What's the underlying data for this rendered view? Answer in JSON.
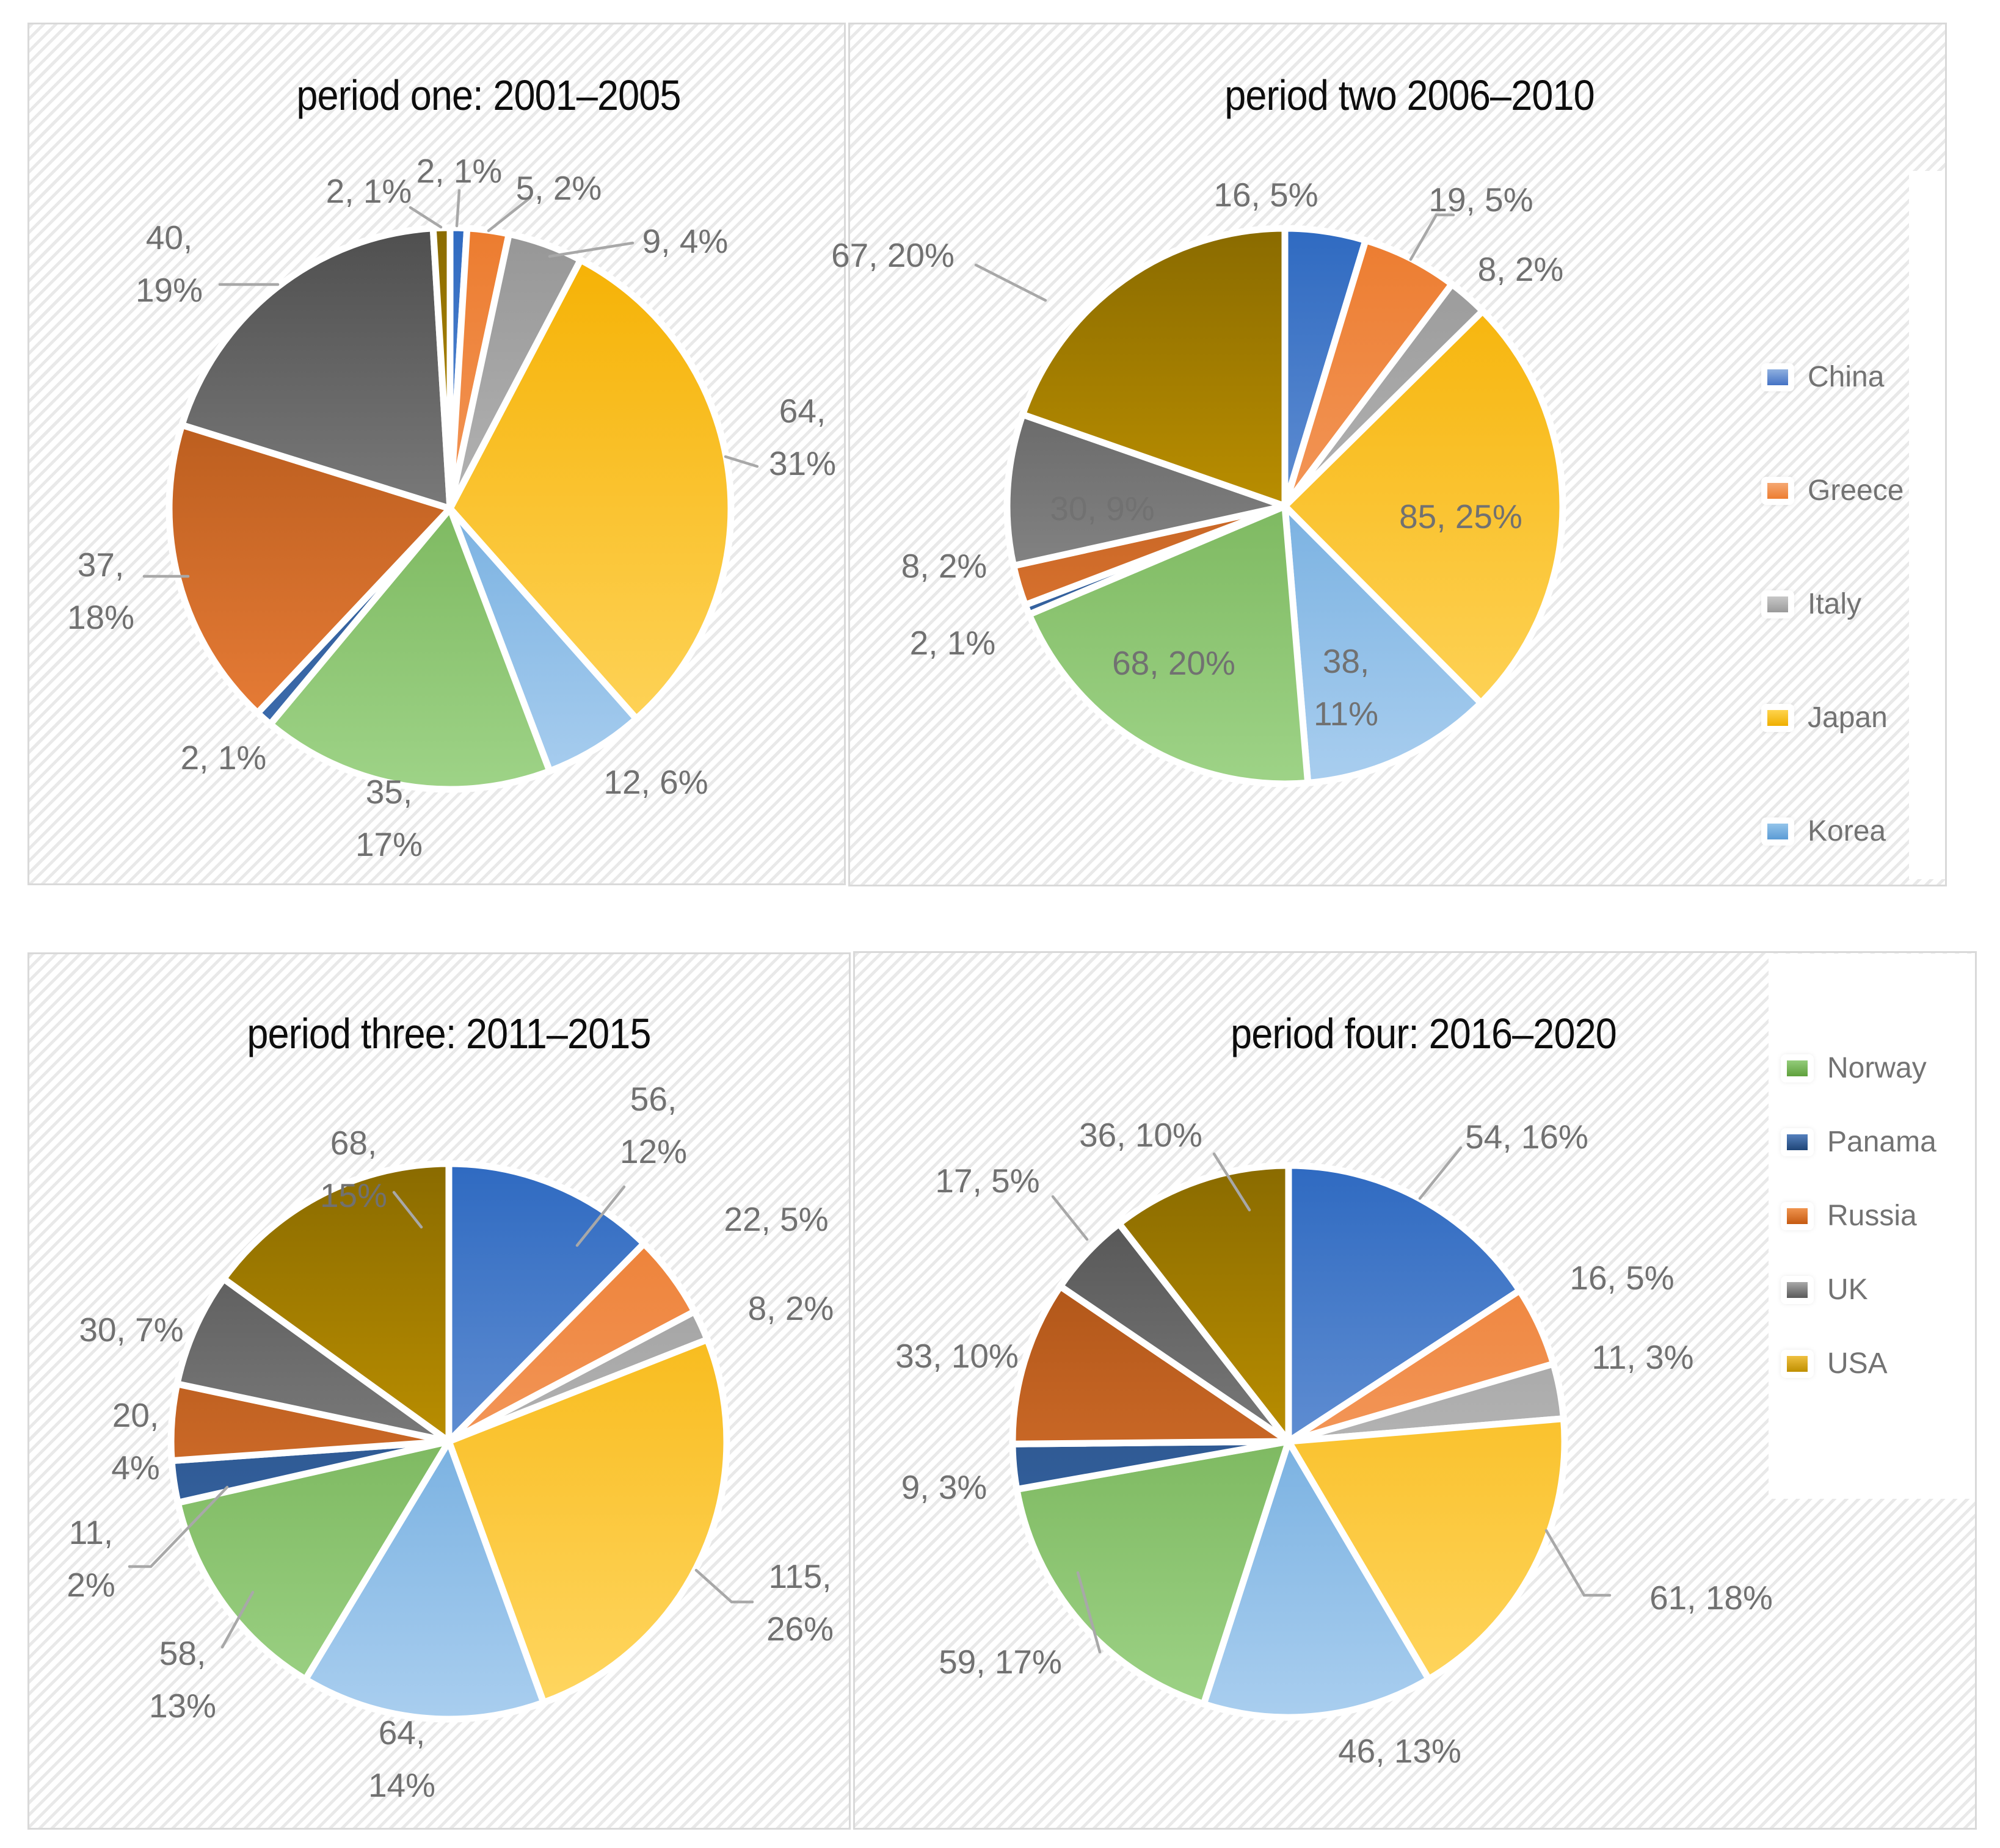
{
  "series": [
    {
      "name": "China",
      "slice_top": "#2F6AC1",
      "slice_bottom": "#8FB0E2",
      "swatch_top": "#8FB0E0",
      "swatch_bottom": "#4472C4"
    },
    {
      "name": "Greece",
      "slice_top": "#EC7C2F",
      "slice_bottom": "#F9AF80",
      "swatch_top": "#F5A873",
      "swatch_bottom": "#ED7D31"
    },
    {
      "name": "Italy",
      "slice_top": "#969696",
      "slice_bottom": "#CFCFCF",
      "swatch_top": "#C8C8C8",
      "swatch_bottom": "#9A9A9A"
    },
    {
      "name": "Japan",
      "slice_top": "#F5B000",
      "slice_bottom": "#FFD763",
      "swatch_top": "#FFD44D",
      "swatch_bottom": "#EFAF00"
    },
    {
      "name": "Korea",
      "slice_top": "#4D96D4",
      "slice_bottom": "#A9CEEF",
      "swatch_top": "#93C4EA",
      "swatch_bottom": "#5B9BD5"
    },
    {
      "name": "Norway",
      "slice_top": "#5FA03C",
      "slice_bottom": "#9ED387",
      "swatch_top": "#93CC7A",
      "swatch_bottom": "#5FA03C"
    },
    {
      "name": "Panama",
      "slice_top": "#1F4576",
      "slice_bottom": "#3F6FB2",
      "swatch_top": "#5580BE",
      "swatch_bottom": "#1F4576"
    },
    {
      "name": "Russia",
      "slice_top": "#A04B10",
      "slice_bottom": "#F0823B",
      "swatch_top": "#F0944F",
      "swatch_bottom": "#C55A11"
    },
    {
      "name": "UK",
      "slice_top": "#4F4F4F",
      "slice_bottom": "#A3A3A3",
      "swatch_top": "#A8A8A8",
      "swatch_bottom": "#595959"
    },
    {
      "name": "USA",
      "slice_top": "#8A6B00",
      "slice_bottom": "#E8B000",
      "swatch_top": "#EFC040",
      "swatch_bottom": "#BF8F00"
    }
  ],
  "chart_data": [
    {
      "type": "pie",
      "title": "period one: 2001–2005",
      "categories": [
        "China",
        "Greece",
        "Italy",
        "Japan",
        "Korea",
        "Norway",
        "Panama",
        "Russia",
        "UK",
        "USA"
      ],
      "values": [
        2,
        5,
        9,
        64,
        12,
        35,
        2,
        37,
        40,
        2
      ],
      "pcts": [
        1,
        2,
        4,
        31,
        6,
        17,
        1,
        18,
        19,
        1
      ],
      "label_format": "value, percent",
      "legend": "none"
    },
    {
      "type": "pie",
      "title": "period two 2006–2010",
      "categories": [
        "China",
        "Greece",
        "Italy",
        "Japan",
        "Korea",
        "Norway",
        "Panama",
        "Russia",
        "UK",
        "USA"
      ],
      "values": [
        16,
        19,
        8,
        85,
        38,
        68,
        2,
        8,
        30,
        67
      ],
      "pcts": [
        5,
        5,
        2,
        25,
        11,
        20,
        1,
        2,
        9,
        20
      ],
      "label_format": "value, percent",
      "legend": "right"
    },
    {
      "type": "pie",
      "title": "period three: 2011–2015",
      "categories": [
        "China",
        "Greece",
        "Italy",
        "Japan",
        "Korea",
        "Norway",
        "Panama",
        "Russia",
        "UK",
        "USA"
      ],
      "values": [
        56,
        22,
        8,
        115,
        64,
        58,
        11,
        20,
        30,
        68
      ],
      "pcts": [
        12,
        5,
        2,
        26,
        14,
        13,
        2,
        4,
        7,
        15
      ],
      "label_format": "value, percent",
      "legend": "none"
    },
    {
      "type": "pie",
      "title": "period four: 2016–2020",
      "categories": [
        "China",
        "Greece",
        "Italy",
        "Japan",
        "Korea",
        "Norway",
        "Panama",
        "Russia",
        "UK",
        "USA"
      ],
      "values": [
        54,
        16,
        11,
        61,
        46,
        59,
        9,
        33,
        17,
        36
      ],
      "pcts": [
        16,
        5,
        3,
        18,
        13,
        17,
        3,
        10,
        5,
        10
      ],
      "label_format": "value, percent",
      "legend": "right"
    }
  ],
  "legends": [
    {
      "items": [
        "China",
        "Greece",
        "Italy",
        "Japan",
        "Korea"
      ]
    },
    {
      "items": [
        "Norway",
        "Panama",
        "Russia",
        "UK",
        "USA"
      ]
    }
  ],
  "colors": {
    "label_text": "#717171",
    "title_text": "#0d0d0d",
    "leader_line": "#A8A8A8",
    "panel_border": "#d9d9d9",
    "panel_hatch": "#e9e9e9",
    "slice_gap": "#ffffff"
  }
}
